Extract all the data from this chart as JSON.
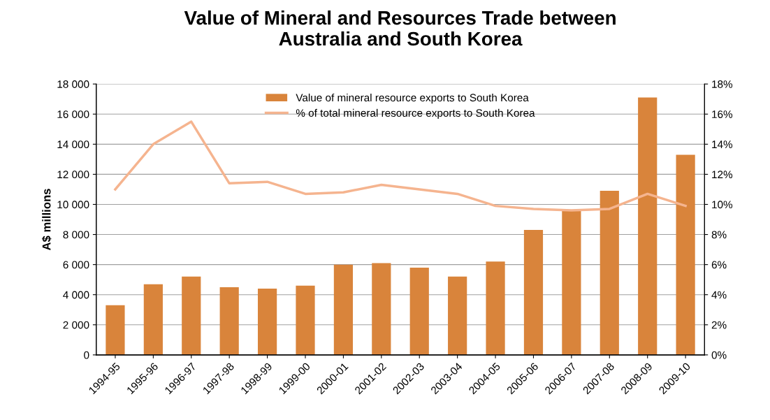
{
  "chart_data": {
    "type": "bar",
    "title": "Value of Mineral and Resources Trade between\nAustralia and South Korea",
    "ylabel": "A$ millions",
    "categories": [
      "1994-95",
      "1995-96",
      "1996-97",
      "1997-98",
      "1998-99",
      "1999-00",
      "2000-01",
      "2001-02",
      "2002-03",
      "2003-04",
      "2004-05",
      "2005-06",
      "2006-07",
      "2007-08",
      "2008-09",
      "2009-10"
    ],
    "series": [
      {
        "name": "Value of mineral resource exports to South Korea",
        "color": "#d9843b",
        "values": [
          3300,
          4700,
          5200,
          4500,
          4400,
          4600,
          6000,
          6100,
          5800,
          5200,
          6200,
          8300,
          9600,
          10900,
          17100,
          13300
        ]
      },
      {
        "name": "% of total mineral resource exports to South Korea",
        "color": "#f5b48f",
        "type": "line",
        "axis": "y2",
        "values": [
          11.0,
          14.0,
          15.5,
          11.4,
          11.5,
          10.7,
          10.8,
          11.3,
          11.0,
          10.7,
          9.9,
          9.7,
          9.6,
          9.7,
          10.7,
          9.9
        ]
      }
    ],
    "ylim": [
      0,
      18000
    ],
    "yticks": [
      {
        "value": 0,
        "label": "0"
      },
      {
        "value": 2000,
        "label": "2 000"
      },
      {
        "value": 4000,
        "label": "4 000"
      },
      {
        "value": 6000,
        "label": "6 000"
      },
      {
        "value": 8000,
        "label": "8 000"
      },
      {
        "value": 10000,
        "label": "10 000"
      },
      {
        "value": 12000,
        "label": "12 000"
      },
      {
        "value": 14000,
        "label": "14 000"
      },
      {
        "value": 16000,
        "label": "16 000"
      },
      {
        "value": 18000,
        "label": "18 000"
      }
    ],
    "y2lim": [
      0,
      18
    ],
    "y2ticks": [
      {
        "value": 0,
        "label": "0%"
      },
      {
        "value": 2,
        "label": "2%"
      },
      {
        "value": 4,
        "label": "4%"
      },
      {
        "value": 6,
        "label": "6%"
      },
      {
        "value": 8,
        "label": "8%"
      },
      {
        "value": 10,
        "label": "10%"
      },
      {
        "value": 12,
        "label": "12%"
      },
      {
        "value": 14,
        "label": "14%"
      },
      {
        "value": 16,
        "label": "16%"
      },
      {
        "value": 18,
        "label": "18%"
      }
    ],
    "grid": "y",
    "legend": "top",
    "marker": "none",
    "line_style": "solid"
  }
}
